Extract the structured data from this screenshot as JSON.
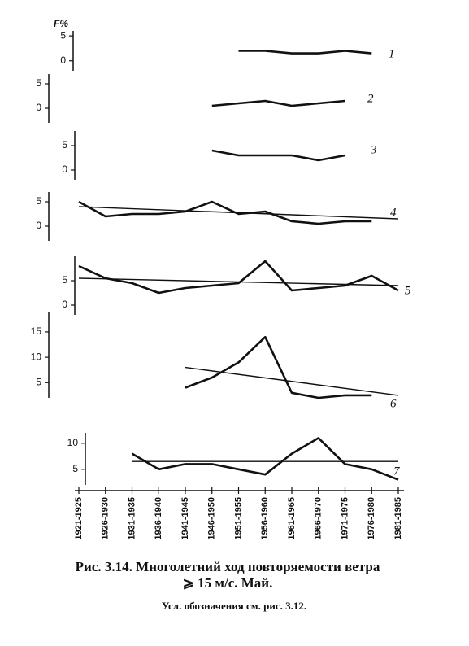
{
  "x_axis": {
    "categories": [
      "1921-1925",
      "1926-1930",
      "1931-1935",
      "1936-1940",
      "1941-1945",
      "1946-1950",
      "1951-1955",
      "1956-1960",
      "1961-1965",
      "1966-1970",
      "1971-1975",
      "1976-1980",
      "1981-1985"
    ]
  },
  "chart_data": [
    {
      "type": "line",
      "label": "1",
      "ylabel": "F%",
      "ylim": [
        -2,
        6
      ],
      "yticks": [
        5,
        0
      ],
      "values": [
        null,
        null,
        null,
        null,
        null,
        null,
        2,
        2,
        1.5,
        1.5,
        2,
        1.5,
        null
      ]
    },
    {
      "type": "line",
      "label": "2",
      "ylim": [
        -3,
        7
      ],
      "yticks": [
        5,
        0
      ],
      "values": [
        null,
        null,
        null,
        null,
        null,
        0.5,
        1,
        1.5,
        0.5,
        1,
        1.5,
        null,
        null
      ]
    },
    {
      "type": "line",
      "label": "3",
      "ylim": [
        -2,
        8
      ],
      "yticks": [
        5,
        0
      ],
      "values": [
        null,
        null,
        null,
        null,
        null,
        4,
        3,
        3,
        3,
        2,
        3,
        null,
        null
      ]
    },
    {
      "type": "line",
      "label": "4",
      "ylim": [
        -3,
        7
      ],
      "yticks": [
        5,
        0
      ],
      "values": [
        5,
        2,
        2.5,
        2.5,
        3,
        5,
        2.5,
        3,
        1,
        0.5,
        1,
        1,
        null
      ],
      "trend": {
        "start": "1921-1925",
        "end": "1981-1985",
        "values": [
          4,
          1.5
        ]
      }
    },
    {
      "type": "line",
      "label": "5",
      "ylim": [
        -2,
        10
      ],
      "yticks": [
        5,
        0
      ],
      "values": [
        8,
        5.5,
        4.5,
        2.5,
        3.5,
        4,
        4.5,
        9,
        3,
        3.5,
        4,
        6,
        3
      ],
      "trend": {
        "start": "1921-1925",
        "end": "1981-1985",
        "values": [
          5.5,
          4
        ]
      }
    },
    {
      "type": "line",
      "label": "6",
      "ylim": [
        2,
        19
      ],
      "yticks": [
        15,
        10,
        5
      ],
      "values": [
        null,
        null,
        null,
        null,
        4,
        6,
        9,
        14,
        3,
        2,
        2.5,
        2.5,
        null
      ],
      "trend": {
        "start": "1941-1945",
        "end": "1981-1985",
        "values": [
          8,
          2.5
        ]
      }
    },
    {
      "type": "line",
      "label": "7",
      "ylim": [
        2,
        12
      ],
      "yticks": [
        10,
        5
      ],
      "values": [
        null,
        null,
        8,
        5,
        6,
        6,
        5,
        4,
        8,
        11,
        6,
        5,
        3
      ],
      "trend": {
        "start": "1931-1935",
        "end": "1981-1985",
        "values": [
          6.5,
          6.5
        ]
      }
    }
  ],
  "caption": [
    "Рис. 3.14. Многолетний ход повторяемости ветра",
    "⩾ 15 м/с. Май."
  ],
  "note": "Усл. обозначения см. рис. 3.12."
}
